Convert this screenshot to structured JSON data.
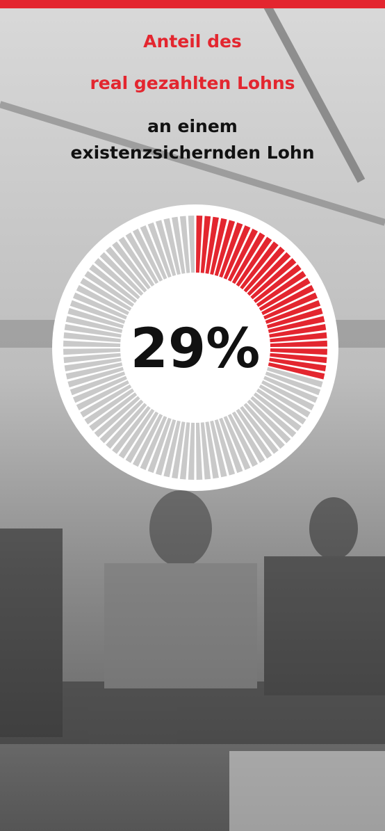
{
  "chart_data": {
    "type": "donut",
    "title_lines": [
      "Anteil des",
      "real gezahlten Lohns",
      "an einem",
      "existenzsichernden Lohn"
    ],
    "title_colors": [
      "#e3262f",
      "#e3262f",
      "#111111",
      "#111111"
    ],
    "values": [
      29
    ],
    "value_labels": [
      "29%"
    ],
    "total": 100,
    "color": "#e3262f",
    "rest_color": "#c9c9c9"
  }
}
